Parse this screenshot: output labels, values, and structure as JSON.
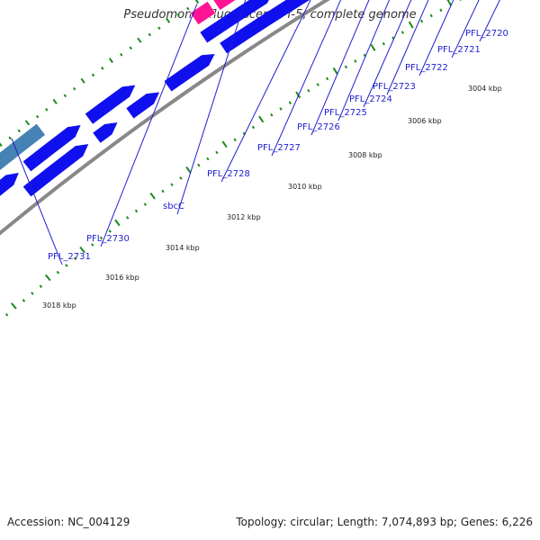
{
  "title": "Pseudomonas fluorescens Pf-5, complete genome",
  "footer": {
    "accession": "Accession: NC_004129",
    "summary": "Topology: circular; Length: 7,074,893 bp; Genes: 6,226"
  },
  "colors": {
    "cds": "#1010ee",
    "backbone": "#888888",
    "ticks": "#1a8a1a",
    "labels": "#1f1fd0"
  },
  "kbp_labels": [
    "3004 kbp",
    "3006 kbp",
    "3008 kbp",
    "3010 kbp",
    "3012 kbp",
    "3014 kbp",
    "3016 kbp",
    "3018 kbp"
  ],
  "genes": [
    {
      "name": "PFL_2720",
      "color": "#ff8c00"
    },
    {
      "name": "PFL_2721",
      "color": "#6a5acd"
    },
    {
      "name": "PFL_2722",
      "color": "#4682b4"
    },
    {
      "name": "PFL_2723",
      "color": "#4682b4"
    },
    {
      "name": "PFL_2724",
      "color": "#4682b4"
    },
    {
      "name": "PFL_2725",
      "color": "#606060"
    },
    {
      "name": "PFL_2726",
      "color": "#606060"
    },
    {
      "name": "PFL_2727",
      "color": "#606060"
    },
    {
      "name": "PFL_2728",
      "color": "#606060"
    },
    {
      "name": "sbcC",
      "color": "#ff1493"
    },
    {
      "name": "PFL_2730",
      "color": "#ff1493"
    },
    {
      "name": "PFL_2731",
      "color": "#4682b4"
    }
  ]
}
